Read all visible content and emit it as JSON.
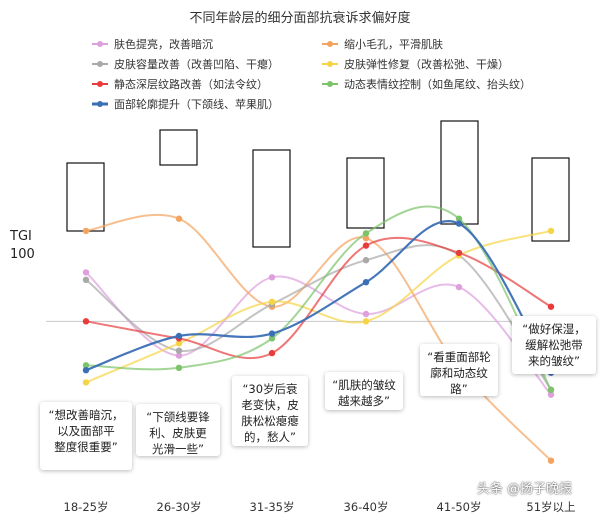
{
  "chart_data": {
    "type": "line",
    "title": "不同年龄层的细分面部抗衰诉求偏好度",
    "ylabel": "TGI",
    "reference_line": 100,
    "reference_label": "100",
    "ylim": [
      40,
      175
    ],
    "categories": [
      "18-25岁",
      "26-30岁",
      "31-35岁",
      "36-40岁",
      "41-50岁",
      "51岁以上"
    ],
    "series": [
      {
        "name": "肤色提亮，改善暗沉",
        "color": "#dda0dd",
        "values": [
          120,
          86,
          118,
          103,
          114,
          70
        ]
      },
      {
        "name": "缩小毛孔，平滑肌肤",
        "color": "#f4a460",
        "values": [
          137,
          142,
          106,
          134,
          81,
          43
        ]
      },
      {
        "name": "皮肤容量改善（改善凹陷、干瘪）",
        "color": "#a9a9a9",
        "values": [
          117,
          88,
          107,
          125,
          127,
          72
        ]
      },
      {
        "name": "皮肤弹性修复（改善松弛、干燥）",
        "color": "#f5d547",
        "values": [
          75,
          91,
          108,
          100,
          127,
          137
        ]
      },
      {
        "name": "静态深层纹路改善（如法令纹）",
        "color": "#e83c3c",
        "values": [
          100,
          93,
          87,
          131,
          128,
          106
        ]
      },
      {
        "name": "动态表情纹控制（如鱼尾纹、抬头纹）",
        "color": "#7cc36a",
        "values": [
          82,
          81,
          93,
          136,
          142,
          72
        ]
      },
      {
        "name": "面部轮廓提升（下颌线、苹果肌）",
        "color": "#3b6fb6",
        "values": [
          80,
          94,
          95,
          116,
          140,
          79
        ]
      }
    ],
    "highlighted": [
      0,
      1,
      2,
      3,
      4,
      5
    ],
    "annotations": [
      "“想改善暗沉，\n以及面部平\n整度很重要”",
      "“下颌线要锋\n利、皮肤更\n光滑一些”",
      "“30岁后衰\n老变快，皮\n肤松松瘪瘪\n的，愁人”",
      "“肌肤的皱纹\n越来越多”",
      "“看重面部轮\n廓和动态纹\n路”",
      "“做好保湿，\n缓解松弛带\n来的皱纹”"
    ],
    "grid": false,
    "legend_position": "top"
  },
  "watermark": "头条 @扬子晚报"
}
